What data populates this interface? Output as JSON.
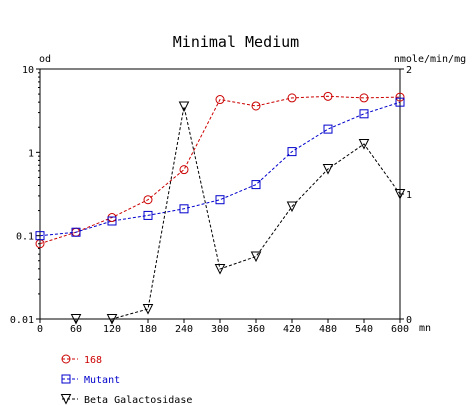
{
  "chart_data": {
    "type": "line",
    "title": "Minimal Medium",
    "ylabel_left": "od",
    "ylabel_right": "nmole/min/mg",
    "xlabel_unit": "mn",
    "x_ticks": [
      0,
      60,
      120,
      180,
      240,
      300,
      360,
      420,
      480,
      540,
      600
    ],
    "xlim": [
      0,
      600
    ],
    "y_left_scale": "log",
    "y_left_ticks": [
      "0.01",
      "0.1",
      "1",
      "10"
    ],
    "ylim_left": [
      0.01,
      10
    ],
    "y_right_ticks": [
      "0",
      "1",
      "2"
    ],
    "ylim_right": [
      0,
      2
    ],
    "grid": false,
    "legend_placement": "bottom-left",
    "series": [
      {
        "name": "168",
        "axis": "left",
        "color": "#cc0000",
        "marker": "circle",
        "x": [
          0,
          60,
          120,
          180,
          240,
          300,
          360,
          420,
          480,
          540,
          600
        ],
        "y": [
          0.08,
          0.11,
          0.165,
          0.27,
          0.62,
          4.3,
          3.6,
          4.5,
          4.7,
          4.5,
          4.6
        ]
      },
      {
        "name": "Mutant",
        "axis": "left",
        "color": "#0000cc",
        "marker": "square",
        "x": [
          0,
          60,
          120,
          180,
          240,
          300,
          360,
          420,
          480,
          540,
          600
        ],
        "y": [
          0.1,
          0.11,
          0.15,
          0.175,
          0.21,
          0.27,
          0.41,
          1.02,
          1.9,
          2.9,
          4.0
        ]
      },
      {
        "name": "Beta Galactosidase",
        "axis": "right",
        "color": "#000000",
        "marker": "triangle-down",
        "x": [
          60,
          120,
          180,
          240,
          300,
          360,
          420,
          480,
          540,
          600
        ],
        "y": [
          0.0,
          0.0,
          0.08,
          1.7,
          0.4,
          0.5,
          0.9,
          1.2,
          1.4,
          1.0
        ]
      }
    ]
  }
}
